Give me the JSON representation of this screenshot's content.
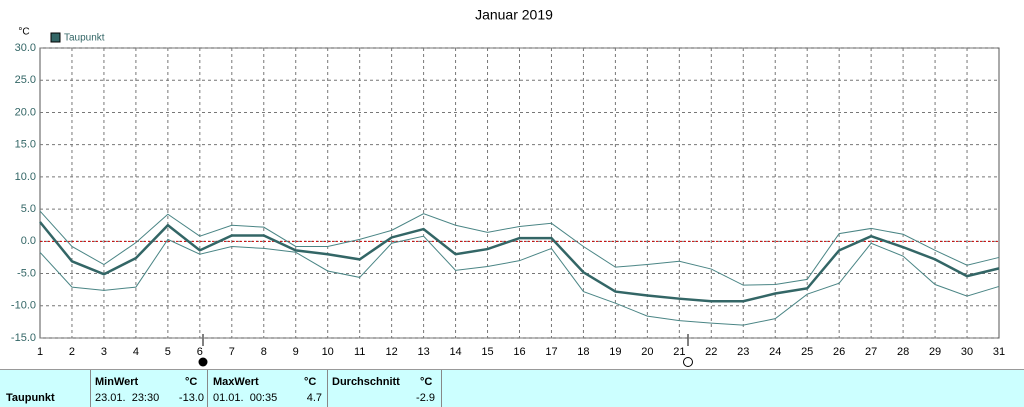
{
  "chart_data": {
    "type": "line",
    "title": "Januar 2019",
    "y_unit_label": "°C",
    "categories": [
      "1",
      "2",
      "3",
      "4",
      "5",
      "6",
      "7",
      "8",
      "9",
      "10",
      "11",
      "12",
      "13",
      "14",
      "15",
      "16",
      "17",
      "18",
      "19",
      "20",
      "21",
      "22",
      "23",
      "24",
      "25",
      "26",
      "27",
      "28",
      "29",
      "30",
      "31"
    ],
    "series": [
      {
        "name": "Taupunkt",
        "color": "#336666",
        "width": 2.5,
        "values": [
          3.0,
          -3.1,
          -5.1,
          -2.6,
          2.5,
          -1.4,
          0.9,
          0.9,
          -1.4,
          -2.0,
          -2.8,
          0.6,
          1.9,
          -2.0,
          -1.2,
          0.5,
          0.5,
          -4.8,
          -7.8,
          -8.4,
          -8.9,
          -9.3,
          -9.3,
          -8.1,
          -7.3,
          -1.4,
          0.8,
          -0.9,
          -2.8,
          -5.4,
          -4.2
        ]
      },
      {
        "color": "#4a8585",
        "width": 1,
        "values": [
          4.7,
          -0.8,
          -3.6,
          -0.2,
          4.2,
          0.8,
          2.5,
          2.2,
          -0.8,
          -0.8,
          0.3,
          1.7,
          4.3,
          2.5,
          1.4,
          2.3,
          2.8,
          -0.8,
          -4.0,
          -3.6,
          -3.1,
          -4.3,
          -6.8,
          -6.7,
          -5.9,
          1.2,
          2.0,
          1.1,
          -1.4,
          -3.7,
          -2.5
        ]
      },
      {
        "color": "#4a8585",
        "width": 1,
        "values": [
          -1.7,
          -7.1,
          -7.6,
          -7.1,
          0.3,
          -2.0,
          -0.8,
          -1.1,
          -1.7,
          -4.6,
          -5.6,
          -0.3,
          0.8,
          -4.5,
          -3.9,
          -3.0,
          -1.1,
          -7.8,
          -9.6,
          -11.6,
          -12.3,
          -12.7,
          -13.0,
          -12.0,
          -8.2,
          -6.5,
          -0.3,
          -2.3,
          -6.7,
          -8.5,
          -7.0
        ]
      }
    ],
    "ylim": [
      -15,
      30
    ],
    "yticks": [
      {
        "value": -15,
        "label": "-15.0"
      },
      {
        "value": -10,
        "label": "-10.0"
      },
      {
        "value": -5,
        "label": "-5.0"
      },
      {
        "value": 0,
        "label": "0.0"
      },
      {
        "value": 5,
        "label": "5.0"
      },
      {
        "value": 10,
        "label": "10.0"
      },
      {
        "value": 15,
        "label": "15.0"
      },
      {
        "value": 20,
        "label": "20.0"
      },
      {
        "value": 25,
        "label": "25.0"
      },
      {
        "value": 30,
        "label": "30.0"
      }
    ],
    "grid": true,
    "zero_line_color": "#cc0000"
  },
  "table": {
    "row_label": "Taupunkt",
    "columns": [
      {
        "header": "MinWert",
        "unit": "°C",
        "time": "23.01.  23:30",
        "value": "-13.0"
      },
      {
        "header": "MaxWert",
        "unit": "°C",
        "time": "01.01.  00:35",
        "value": "4.7"
      },
      {
        "header": "Durchschnitt",
        "unit": "°C",
        "value": "-2.9"
      }
    ]
  }
}
